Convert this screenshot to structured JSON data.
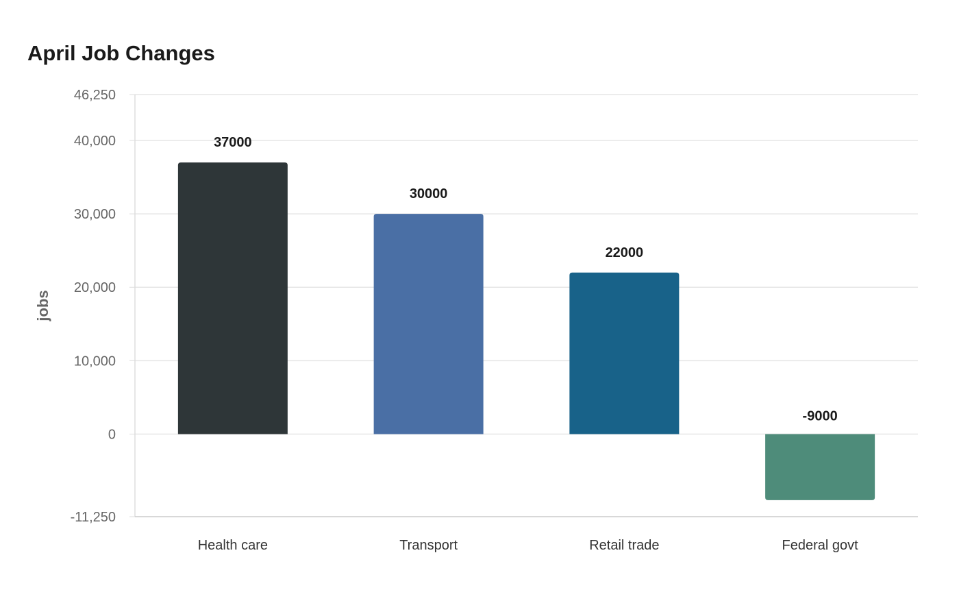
{
  "chart_data": {
    "type": "bar",
    "title": "April Job Changes",
    "xlabel": "",
    "ylabel": "jobs",
    "categories": [
      "Health care",
      "Transport",
      "Retail trade",
      "Federal govt"
    ],
    "values": [
      37000,
      30000,
      22000,
      -9000
    ],
    "value_labels": [
      "37000",
      "30000",
      "22000",
      "-9000"
    ],
    "colors": [
      "#2e3638",
      "#4a6fa5",
      "#186289",
      "#4e8c7a"
    ],
    "ylim": [
      -11250,
      46250
    ],
    "yticks": [
      -11250,
      0,
      10000,
      20000,
      30000,
      40000,
      46250
    ],
    "ytick_labels": [
      "-11,250",
      "0",
      "10,000",
      "20,000",
      "30,000",
      "40,000",
      "46,250"
    ],
    "grid": true,
    "legend": "none"
  }
}
